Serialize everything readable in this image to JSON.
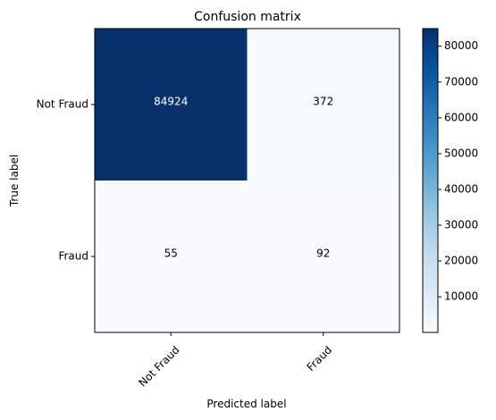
{
  "chart_data": {
    "type": "heatmap",
    "title": "Confusion matrix",
    "xlabel": "Predicted label",
    "ylabel": "True label",
    "x_categories": [
      "Not Fraud",
      "Fraud"
    ],
    "y_categories": [
      "Not Fraud",
      "Fraud"
    ],
    "values": [
      [
        84924,
        372
      ],
      [
        55,
        92
      ]
    ],
    "value_labels": [
      [
        "84924",
        "372"
      ],
      [
        "55",
        "92"
      ]
    ],
    "colormap": "Blues",
    "colors": {
      "low": "#f7fbff",
      "high": "#08306b",
      "text_on_dark": "#ffffff",
      "text_on_light": "#000000"
    },
    "colorbar": {
      "min": 55,
      "max": 84924,
      "ticks": [
        10000,
        20000,
        30000,
        40000,
        50000,
        60000,
        70000,
        80000
      ],
      "tick_labels": [
        "10000",
        "20000",
        "30000",
        "40000",
        "50000",
        "60000",
        "70000",
        "80000"
      ]
    },
    "grid": false,
    "x_tick_rotation_deg": 45
  }
}
